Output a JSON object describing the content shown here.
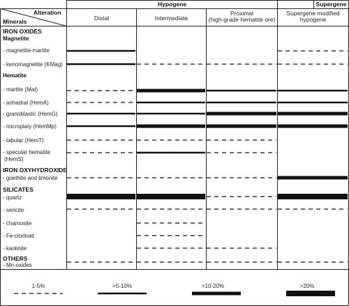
{
  "header": {
    "hypogene": "Hypogene",
    "supergene": "Supergene",
    "alteration": "Alteration",
    "minerals": "Minerals",
    "columns": {
      "distal": "Distal",
      "intermediate": "Intermediate",
      "proximal_line1": "Proximal",
      "proximal_line2": "(high-grade hematite ore)",
      "supergene_line1": "Supergene modified",
      "supergene_line2": "hypogene"
    }
  },
  "groups": {
    "iron_oxides": "IRON OXIDES",
    "magnetite": "Magnetite",
    "hematite": "Hematite",
    "iron_oxyhydroxide": "IRON OXYHYDROXIDE",
    "silicates": "SILICATES",
    "others": "OTHERS"
  },
  "minerals": {
    "magnetite_martite": "- magnetite-martite",
    "kenomagnetite": "- kenomagnetite (KMag)",
    "martite": "- martite (Mat)",
    "anhedral": "- anhedral (HemA)",
    "granoblastic": "- granoblastic (HemG)",
    "microplaty": "- microplaty (HemMp)",
    "tabular": "- tabular (HemT)",
    "specular_1": "- specular hematite",
    "specular_2": "(HemS)",
    "goethite": "- goethite and limonite",
    "quartz": "- quartz",
    "sericite": "- sericite",
    "chamosite": "- chamosite",
    "fe_cloritoid": "- Fe-cloritoid",
    "kaolinite": "- kaolinite",
    "mn_oxides": "- Mn-oxides"
  },
  "legend": {
    "l1": "1-5%",
    "l2": ">5-10%",
    "l3": ">10-20%",
    "l4": ">20%"
  },
  "abundance": {
    "magnetite_martite": [
      2,
      0,
      0,
      1
    ],
    "kenomagnetite": [
      2,
      1,
      1,
      1
    ],
    "martite": [
      1,
      3,
      2,
      2
    ],
    "anhedral": [
      1,
      2,
      2,
      2
    ],
    "granoblastic": [
      2,
      2,
      3,
      3
    ],
    "microplaty": [
      2,
      3,
      3,
      3
    ],
    "tabular": [
      1,
      1,
      1,
      0
    ],
    "specular": [
      1,
      2,
      1,
      0
    ],
    "goethite": [
      1,
      1,
      1,
      3
    ],
    "quartz": [
      4,
      4,
      1,
      4
    ],
    "sericite": [
      1,
      1,
      1,
      1
    ],
    "chamosite": [
      0,
      1,
      0,
      0
    ],
    "fe_cloritoid": [
      0,
      1,
      0,
      0
    ],
    "kaolinite": [
      0,
      1,
      1,
      0
    ],
    "mn_oxides": [
      1,
      1,
      1,
      1
    ]
  }
}
